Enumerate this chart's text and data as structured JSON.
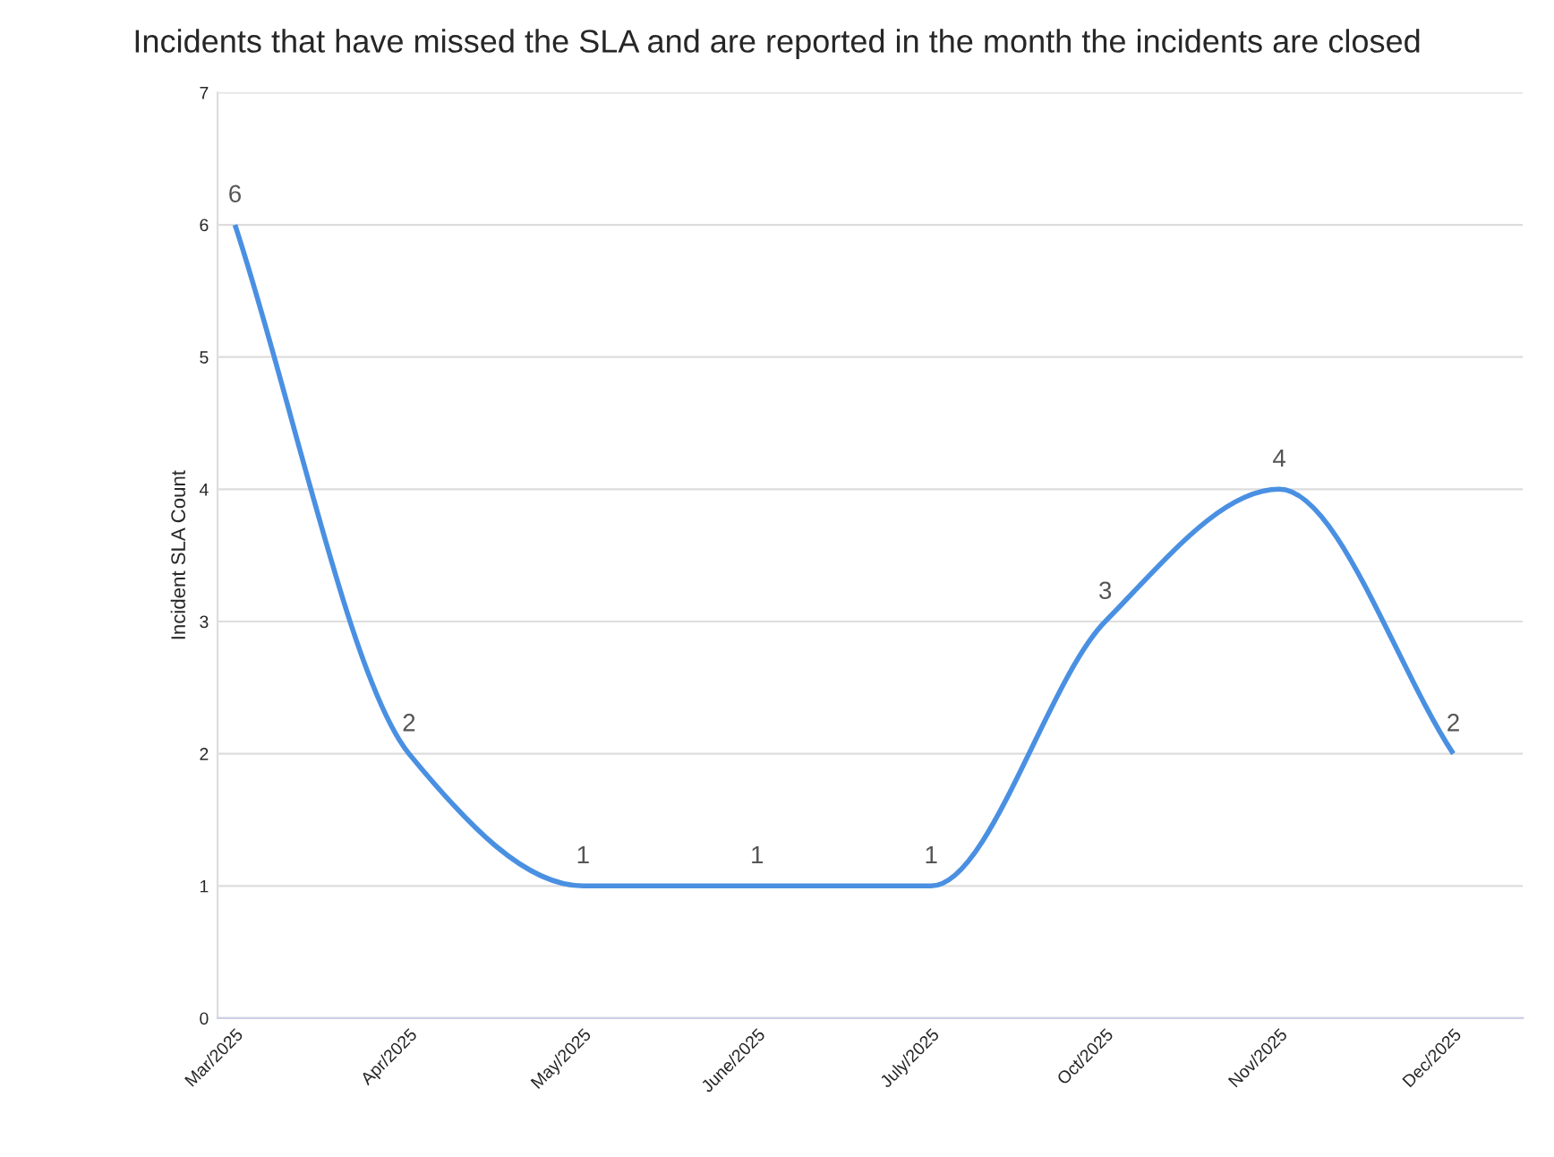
{
  "chart_data": {
    "type": "line",
    "title": "Incidents that have missed the SLA and are reported in the month the incidents are closed",
    "ylabel": "Incident SLA Count",
    "categories": [
      "Mar/2025",
      "Apr/2025",
      "May/2025",
      "June/2025",
      "July/2025",
      "Oct/2025",
      "Nov/2025",
      "Dec/2025"
    ],
    "series": [
      {
        "color": "#4a90e2",
        "values": [
          6,
          2,
          1,
          1,
          1,
          3,
          4,
          2
        ]
      }
    ],
    "ylim": [
      0,
      7
    ],
    "yticks": [
      0,
      1,
      2,
      3,
      4,
      5,
      6,
      7
    ],
    "grid": "y",
    "legend": false,
    "data_labels": true,
    "marker": "none",
    "line_style": "solid"
  }
}
